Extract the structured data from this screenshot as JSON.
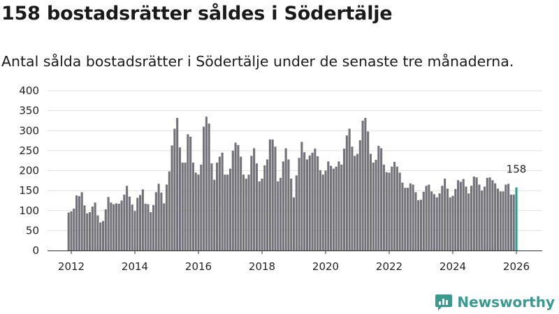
{
  "title": "158 bostadsrätter såldes i Södertälje",
  "subtitle": "Antal sålda bostadsrätter i Södertälje under de senaste tre månaderna.",
  "brand": {
    "name": "Newsworthy",
    "color": "#3a9a8f"
  },
  "colors": {
    "bar": "#737278",
    "highlight": "#2a9d8f",
    "grid": "#e1e1e1",
    "axis": "#333333"
  },
  "chart_data": {
    "type": "bar",
    "title": "158 bostadsrätter såldes i Södertälje",
    "xlabel": "",
    "ylabel": "",
    "ylim": [
      0,
      400
    ],
    "yticks": [
      "0",
      "50",
      "100",
      "150",
      "200",
      "250",
      "300",
      "350",
      "400"
    ],
    "xticks": [
      "2012",
      "2014",
      "2016",
      "2018",
      "2020",
      "2022",
      "2024",
      "2026"
    ],
    "x_start": "2012-01",
    "x_end": "2026-01",
    "grid": true,
    "series": [
      {
        "name": "Antal sålda bostadsrätter",
        "start": "2011-12",
        "values": [
          95,
          98,
          105,
          138,
          136,
          146,
          113,
          93,
          96,
          110,
          120,
          88,
          70,
          74,
          103,
          134,
          120,
          116,
          118,
          117,
          125,
          140,
          162,
          135,
          115,
          99,
          132,
          139,
          153,
          117,
          116,
          96,
          114,
          146,
          167,
          145,
          118,
          165,
          198,
          263,
          305,
          332,
          258,
          220,
          220,
          291,
          285,
          220,
          195,
          190,
          215,
          310,
          335,
          318,
          218,
          177,
          220,
          235,
          245,
          190,
          190,
          205,
          250,
          270,
          264,
          235,
          190,
          180,
          190,
          237,
          256,
          218,
          173,
          180,
          213,
          228,
          278,
          278,
          260,
          173,
          182,
          223,
          256,
          228,
          180,
          133,
          188,
          232,
          272,
          246,
          228,
          238,
          245,
          255,
          236,
          201,
          190,
          200,
          223,
          212,
          205,
          210,
          223,
          215,
          255,
          288,
          305,
          260,
          237,
          242,
          276,
          325,
          332,
          298,
          242,
          220,
          227,
          262,
          256,
          215,
          196,
          195,
          210,
          222,
          210,
          195,
          170,
          157,
          157,
          168,
          165,
          146,
          126,
          127,
          147,
          162,
          165,
          148,
          141,
          133,
          143,
          162,
          180,
          155,
          133,
          137,
          154,
          176,
          172,
          179,
          160,
          143,
          162,
          185,
          183,
          165,
          150,
          160,
          182,
          183,
          176,
          168,
          155,
          148,
          148,
          165,
          167,
          140,
          140,
          158
        ]
      }
    ],
    "annotations": [
      {
        "label": "158",
        "value": 158,
        "target": "last"
      }
    ]
  }
}
